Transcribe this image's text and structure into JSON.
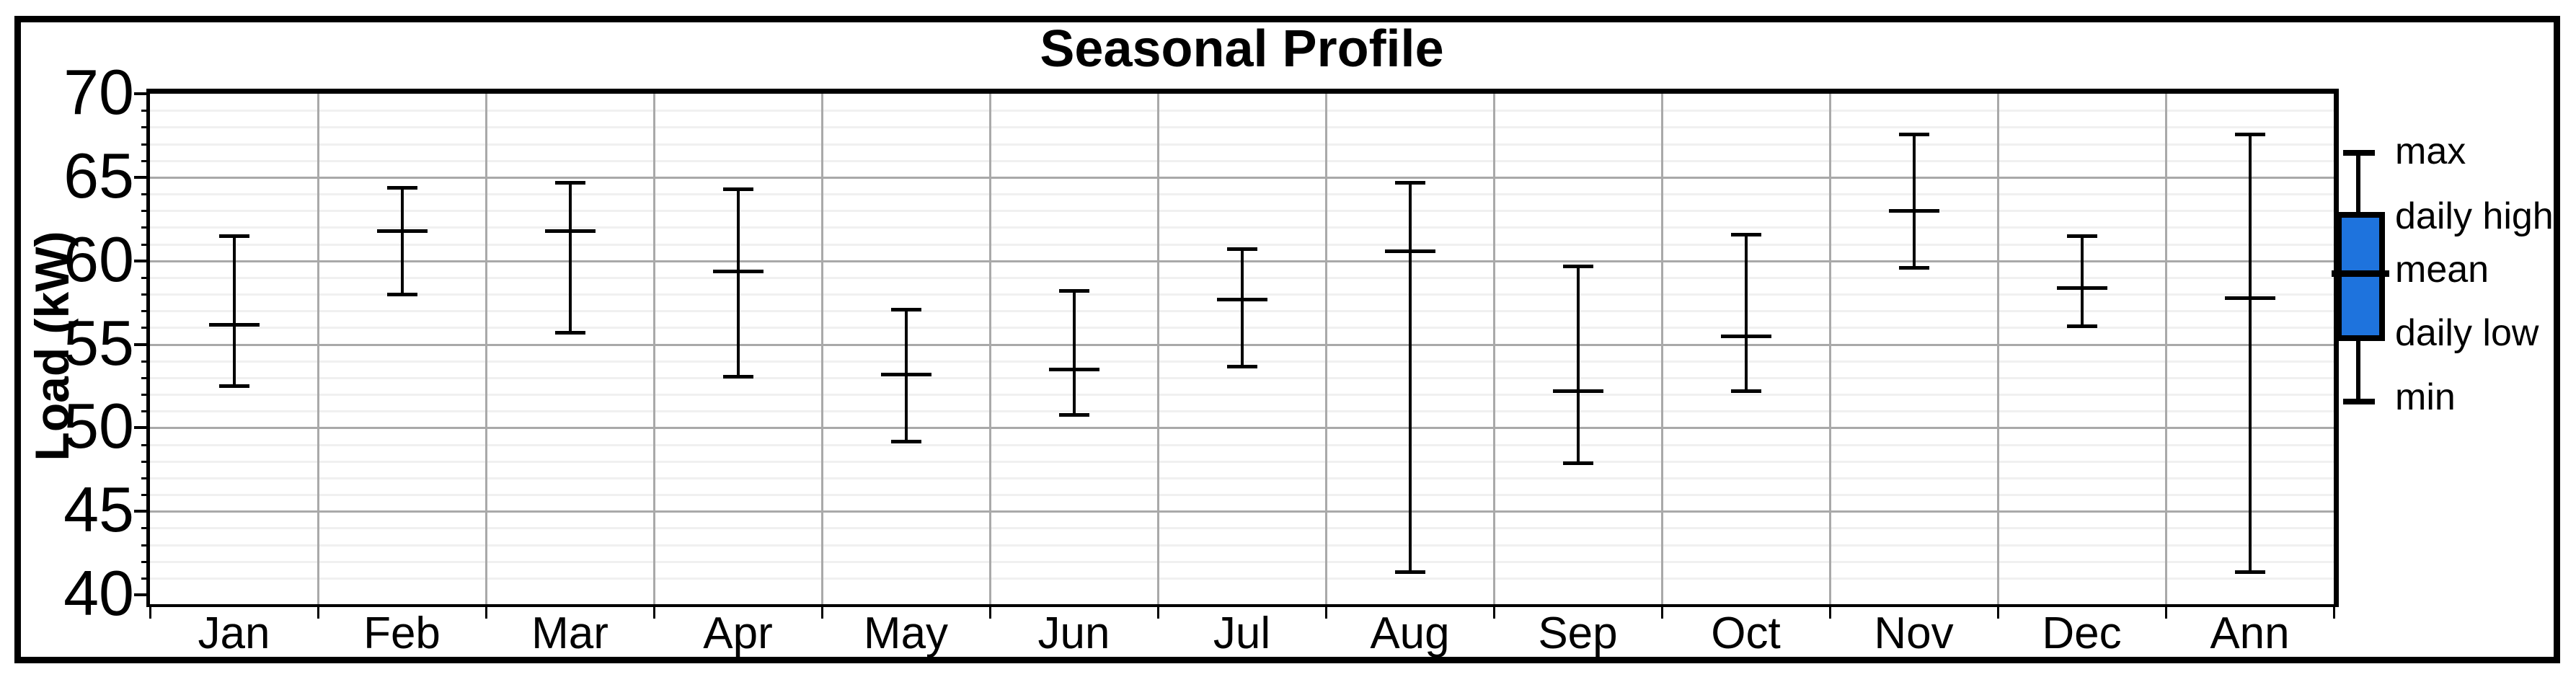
{
  "title": "Seasonal Profile",
  "y_axis": {
    "label": "Load (kW)",
    "tick_labels": [
      "70",
      "65",
      "60",
      "55",
      "50",
      "45",
      "40"
    ]
  },
  "x_axis": {
    "tick_labels": [
      "Jan",
      "Feb",
      "Mar",
      "Apr",
      "May",
      "Jun",
      "Jul",
      "Aug",
      "Sep",
      "Oct",
      "Nov",
      "Dec",
      "Ann"
    ]
  },
  "legend": {
    "entries": [
      {
        "label": "max"
      },
      {
        "label": "daily high"
      },
      {
        "label": "mean"
      },
      {
        "label": "daily low"
      },
      {
        "label": "min"
      }
    ],
    "box_fill_color": "#1e73dd"
  },
  "colors": {
    "foreground": "#000000",
    "background": "#ffffff",
    "major_gridline": "#a9a9a9",
    "minor_gridline": "#f0f0f0",
    "category_separator": "#a9a9a9",
    "legend_box_fill": "#1e73dd"
  },
  "chart_data": {
    "type": "error-bar",
    "subtype": "seasonal min/mean/max whisker profile, one glyph per category",
    "title": "Seasonal Profile",
    "xlabel": "",
    "ylabel": "Load (kW)",
    "ylim": [
      40,
      70
    ],
    "y_major_step": 5,
    "y_minor_step": 1,
    "grid": "horizontal major + minor gridlines on; vertical category separator lines on",
    "legend_position": "right of plot",
    "legend_entries": [
      "max",
      "daily high",
      "mean",
      "daily low",
      "min"
    ],
    "categories": [
      "Jan",
      "Feb",
      "Mar",
      "Apr",
      "May",
      "Jun",
      "Jul",
      "Aug",
      "Sep",
      "Oct",
      "Nov",
      "Dec",
      "Ann"
    ],
    "series": [
      {
        "name": "min",
        "values": [
          52.5,
          58.0,
          55.7,
          53.1,
          49.2,
          50.8,
          53.7,
          41.4,
          47.9,
          52.2,
          59.6,
          56.1,
          41.4
        ]
      },
      {
        "name": "mean",
        "values": [
          56.2,
          61.8,
          61.8,
          59.4,
          53.2,
          53.5,
          57.7,
          60.6,
          52.2,
          55.5,
          63.0,
          58.4,
          57.8
        ]
      },
      {
        "name": "max",
        "values": [
          61.5,
          64.4,
          64.7,
          64.3,
          57.1,
          58.2,
          60.7,
          64.7,
          59.7,
          61.6,
          67.6,
          61.5,
          67.6
        ]
      }
    ]
  }
}
